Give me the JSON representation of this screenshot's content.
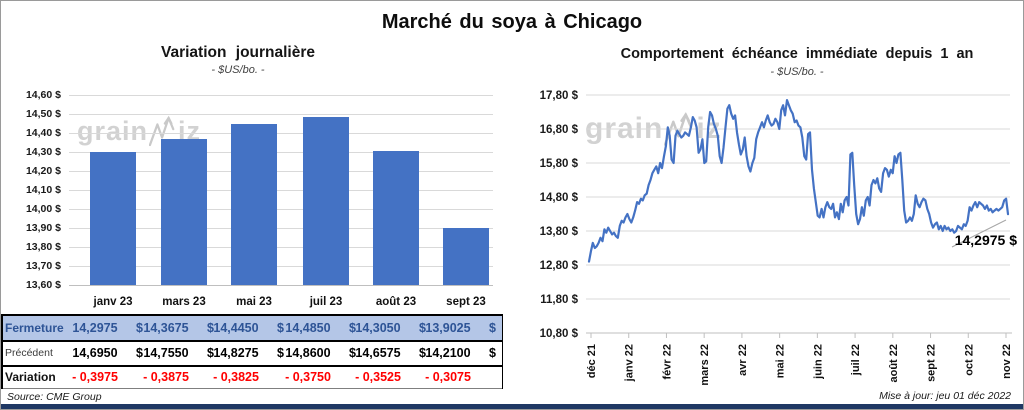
{
  "page": {
    "title": "Marché du soya à Chicago",
    "source": "Source: CME Group",
    "updated": "Mise à jour: jeu 01 déc 2022",
    "watermark": {
      "text": "grainwiz",
      "part1": "grain",
      "part2": "iz"
    }
  },
  "colors": {
    "accent_blue": "#4472C4",
    "close_row_bg": "#B4C6E7",
    "close_text": "#2E5496",
    "negative_red": "#FF0000",
    "grid": "#D9D9D9",
    "axis": "#BFBFBF",
    "watermark_gray": "#D2D2D2",
    "bottom_bar": "#1F3864"
  },
  "chart_data": [
    {
      "type": "bar",
      "title": "Variation journalière",
      "subtitle": "- $US/bo. -",
      "categories": [
        "janv 23",
        "mars 23",
        "mai 23",
        "juil 23",
        "août 23",
        "sept 23"
      ],
      "values": [
        14.2975,
        14.3675,
        14.445,
        14.485,
        14.305,
        13.9025
      ],
      "ylim": [
        13.6,
        14.6
      ],
      "yticks": [
        14.6,
        14.5,
        14.4,
        14.3,
        14.2,
        14.1,
        14.0,
        13.9,
        13.8,
        13.7,
        13.6
      ],
      "ytick_labels": [
        "14,60 $",
        "14,50 $",
        "14,40 $",
        "14,30 $",
        "14,20 $",
        "14,10 $",
        "14,00 $",
        "13,90 $",
        "13,80 $",
        "13,70 $",
        "13,60 $"
      ],
      "grid": true,
      "legend": "none",
      "bar_color": "#4472C4"
    },
    {
      "type": "line",
      "title": "Comportement échéance immédiate depuis 1 an",
      "subtitle": "- $US/bo. -",
      "x_labels": [
        "déc 21",
        "janv 22",
        "févr 22",
        "mars 22",
        "avr 22",
        "mai 22",
        "juin 22",
        "juil 22",
        "août 22",
        "sept 22",
        "oct 22",
        "nov 22"
      ],
      "ylim": [
        10.8,
        17.8
      ],
      "yticks": [
        17.8,
        16.8,
        15.8,
        14.8,
        13.8,
        12.8,
        11.8,
        10.8
      ],
      "ytick_labels": [
        "17,80 $",
        "16,80 $",
        "15,80 $",
        "14,80 $",
        "13,80 $",
        "12,80 $",
        "11,80 $",
        "10,80 $"
      ],
      "annotation": "14,2975 $",
      "last_value": 14.2975,
      "grid": true,
      "legend": "none",
      "line_color": "#4472C4",
      "values": [
        12.9,
        13.2,
        13.45,
        13.3,
        13.35,
        13.45,
        13.6,
        13.5,
        13.85,
        13.75,
        13.9,
        13.8,
        13.7,
        13.75,
        13.65,
        13.6,
        13.95,
        14.1,
        14.05,
        14.2,
        14.3,
        14.15,
        14.05,
        14.2,
        14.4,
        14.65,
        14.6,
        14.75,
        14.7,
        14.85,
        14.9,
        15.15,
        15.3,
        15.5,
        15.6,
        15.7,
        15.5,
        15.8,
        15.65,
        16.0,
        16.3,
        16.85,
        16.6,
        15.9,
        15.8,
        16.6,
        16.75,
        16.65,
        16.55,
        16.6,
        16.7,
        16.65,
        16.6,
        16.85,
        17.15,
        17.05,
        16.85,
        16.1,
        16.2,
        16.5,
        15.8,
        15.85,
        16.85,
        17.3,
        17.2,
        16.95,
        16.8,
        16.6,
        16.0,
        15.8,
        16.25,
        16.85,
        17.4,
        17.5,
        17.25,
        17.1,
        17.2,
        16.7,
        16.35,
        16.05,
        16.2,
        16.55,
        16.0,
        15.7,
        15.55,
        15.8,
        15.95,
        16.5,
        16.7,
        16.85,
        17.0,
        16.85,
        17.05,
        17.2,
        17.0,
        16.9,
        16.95,
        17.1,
        17.0,
        16.8,
        17.35,
        17.5,
        17.2,
        17.65,
        17.5,
        17.35,
        17.25,
        17.0,
        17.05,
        16.9,
        16.85,
        16.55,
        16.0,
        15.9,
        16.65,
        16.7,
        15.6,
        15.05,
        14.65,
        14.25,
        14.2,
        14.45,
        14.2,
        14.5,
        14.65,
        14.5,
        14.45,
        14.6,
        14.2,
        14.35,
        14.15,
        14.6,
        14.35,
        14.7,
        14.8,
        14.55,
        16.05,
        16.1,
        15.15,
        14.3,
        14.0,
        14.15,
        14.5,
        14.25,
        14.7,
        14.8,
        14.55,
        15.15,
        15.3,
        15.2,
        15.35,
        15.05,
        14.95,
        15.5,
        15.65,
        15.6,
        15.4,
        15.6,
        15.5,
        16.0,
        15.8,
        16.05,
        16.1,
        15.3,
        14.4,
        14.05,
        14.1,
        14.2,
        14.1,
        14.3,
        14.85,
        14.6,
        14.5,
        14.65,
        14.75,
        14.7,
        14.45,
        14.3,
        14.05,
        13.9,
        14.0,
        14.05,
        13.85,
        13.95,
        13.8,
        13.95,
        13.85,
        13.9,
        13.8,
        13.85,
        13.75,
        13.8,
        13.95,
        13.9,
        13.85,
        14.0,
        13.95,
        14.1,
        14.5,
        14.4,
        14.55,
        14.65,
        14.5,
        14.65,
        14.6,
        14.55,
        14.45,
        14.55,
        14.4,
        14.45,
        14.35,
        14.4,
        14.45,
        14.4,
        14.45,
        14.5,
        14.7,
        14.75,
        14.2975
      ]
    },
    {
      "type": "table",
      "columns": [
        "janv 23",
        "mars 23",
        "mai 23",
        "juil 23",
        "août 23",
        "sept 23"
      ],
      "rows": [
        {
          "label": "Fermeture",
          "style": "close",
          "currency": "$",
          "values": [
            "14,2975",
            "14,3675",
            "14,4450",
            "14,4850",
            "14,3050",
            "13,9025"
          ]
        },
        {
          "label": "Précédent",
          "style": "previous",
          "currency": "$",
          "values": [
            "14,6950",
            "14,7550",
            "14,8275",
            "14,8600",
            "14,6575",
            "14,2100"
          ]
        },
        {
          "label": "Variation",
          "style": "variation",
          "currency": "",
          "values": [
            "- 0,3975",
            "- 0,3875",
            "- 0,3825",
            "- 0,3750",
            "- 0,3525",
            "- 0,3075"
          ]
        }
      ]
    }
  ]
}
